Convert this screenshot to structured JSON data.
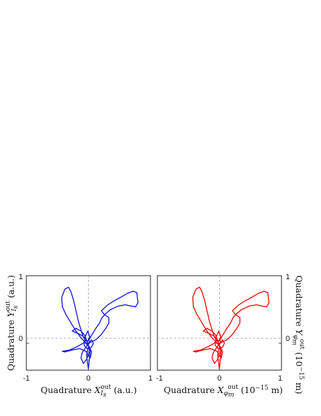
{
  "chart_data": [
    {
      "type": "line",
      "panel": "left",
      "xlabel": "Quadrature X_{I_s}^{out} (a.u.)",
      "ylabel": "Quadrature Y_{I_s}^{out} (a.u.)",
      "xlim": [
        -1,
        1
      ],
      "ylim": [
        -0.4,
        1
      ],
      "xticks": [
        "-1",
        "0",
        "1"
      ],
      "yticks": [
        "0",
        "1"
      ],
      "reference_lines": [
        {
          "axis": "x",
          "value": 0
        },
        {
          "axis": "y",
          "value": 0
        }
      ],
      "grid": false,
      "series": [
        {
          "color": "#1a1ae6",
          "points": [
            [
              0,
              0.0
            ],
            [
              0.05,
              0.02
            ],
            [
              0.12,
              0.05
            ],
            [
              0.2,
              0.12
            ],
            [
              0.28,
              0.22
            ],
            [
              0.33,
              0.3
            ],
            [
              0.33,
              0.38
            ],
            [
              0.26,
              0.42
            ],
            [
              0.21,
              0.48
            ],
            [
              0.3,
              0.56
            ],
            [
              0.4,
              0.62
            ],
            [
              0.52,
              0.68
            ],
            [
              0.63,
              0.74
            ],
            [
              0.72,
              0.77
            ],
            [
              0.78,
              0.75
            ],
            [
              0.8,
              0.6
            ],
            [
              0.76,
              0.54
            ],
            [
              0.68,
              0.55
            ],
            [
              0.6,
              0.57
            ],
            [
              0.48,
              0.55
            ],
            [
              0.36,
              0.5
            ],
            [
              0.28,
              0.44
            ],
            [
              0.22,
              0.38
            ],
            [
              0.18,
              0.3
            ],
            [
              0.12,
              0.22
            ],
            [
              0.08,
              0.16
            ],
            [
              0.04,
              0.1
            ],
            [
              0.01,
              0.05
            ],
            [
              -0.02,
              0.03
            ],
            [
              -0.06,
              0.05
            ],
            [
              -0.1,
              0.14
            ],
            [
              -0.16,
              0.32
            ],
            [
              -0.2,
              0.48
            ],
            [
              -0.24,
              0.64
            ],
            [
              -0.28,
              0.76
            ],
            [
              -0.32,
              0.83
            ],
            [
              -0.38,
              0.8
            ],
            [
              -0.43,
              0.68
            ],
            [
              -0.42,
              0.54
            ],
            [
              -0.36,
              0.42
            ],
            [
              -0.28,
              0.3
            ],
            [
              -0.2,
              0.18
            ],
            [
              -0.12,
              0.08
            ],
            [
              -0.06,
              0.02
            ],
            [
              -0.02,
              -0.02
            ],
            [
              0.02,
              -0.06
            ],
            [
              0.05,
              -0.13
            ],
            [
              0.03,
              -0.22
            ],
            [
              -0.04,
              -0.12
            ],
            [
              -0.14,
              -0.08
            ],
            [
              -0.26,
              -0.1
            ],
            [
              -0.38,
              -0.13
            ],
            [
              -0.42,
              -0.12
            ],
            [
              -0.3,
              -0.1
            ],
            [
              -0.18,
              -0.05
            ],
            [
              -0.08,
              0.0
            ],
            [
              -0.04,
              0.06
            ],
            [
              -0.08,
              0.1
            ],
            [
              -0.16,
              0.14
            ],
            [
              -0.26,
              0.18
            ],
            [
              -0.2,
              0.22
            ],
            [
              -0.12,
              0.18
            ],
            [
              -0.06,
              0.12
            ],
            [
              -0.02,
              0.02
            ],
            [
              0.02,
              -0.12
            ],
            [
              -0.03,
              -0.24
            ],
            [
              -0.08,
              -0.3
            ],
            [
              -0.12,
              -0.22
            ],
            [
              -0.1,
              -0.14
            ],
            [
              -0.04,
              -0.06
            ],
            [
              0.0,
              0.0
            ],
            [
              0.05,
              0.05
            ],
            [
              0.08,
              0.0
            ],
            [
              0.05,
              -0.06
            ],
            [
              -0.02,
              -0.08
            ],
            [
              -0.07,
              -0.03
            ],
            [
              -0.05,
              0.03
            ],
            [
              0.0,
              0.04
            ],
            [
              0.03,
              0.02
            ],
            [
              0.0,
              -0.02
            ],
            [
              -0.03,
              0.0
            ],
            [
              0.0,
              0.05
            ],
            [
              0.02,
              0.1
            ],
            [
              -0.01,
              0.18
            ],
            [
              -0.05,
              0.1
            ],
            [
              -0.02,
              0.01
            ],
            [
              0.03,
              -0.1
            ],
            [
              0.0,
              -0.38
            ],
            [
              -0.03,
              -0.18
            ],
            [
              0.0,
              -0.05
            ],
            [
              0.0,
              0.0
            ]
          ]
        }
      ]
    },
    {
      "type": "line",
      "panel": "right",
      "xlabel": "Quadrature X_{φ_m}^{out} (10^{-15} m)",
      "ylabel": "Quadrature Y_{φ_m}^{out} (10^{-15} m)",
      "xlim": [
        -1,
        1
      ],
      "ylim": [
        -0.4,
        1
      ],
      "xticks": [
        "-1",
        "0",
        "1"
      ],
      "yticks": [
        "0",
        "1"
      ],
      "reference_lines": [
        {
          "axis": "x",
          "value": 0
        },
        {
          "axis": "y",
          "value": 0
        }
      ],
      "grid": false,
      "series": [
        {
          "color": "#ee1111",
          "points": [
            [
              0,
              0.0
            ],
            [
              0.05,
              0.02
            ],
            [
              0.12,
              0.05
            ],
            [
              0.2,
              0.12
            ],
            [
              0.28,
              0.22
            ],
            [
              0.33,
              0.3
            ],
            [
              0.33,
              0.38
            ],
            [
              0.26,
              0.42
            ],
            [
              0.21,
              0.48
            ],
            [
              0.3,
              0.56
            ],
            [
              0.4,
              0.62
            ],
            [
              0.52,
              0.68
            ],
            [
              0.63,
              0.74
            ],
            [
              0.72,
              0.77
            ],
            [
              0.78,
              0.75
            ],
            [
              0.8,
              0.6
            ],
            [
              0.76,
              0.54
            ],
            [
              0.68,
              0.55
            ],
            [
              0.6,
              0.57
            ],
            [
              0.48,
              0.55
            ],
            [
              0.36,
              0.5
            ],
            [
              0.28,
              0.44
            ],
            [
              0.22,
              0.38
            ],
            [
              0.18,
              0.3
            ],
            [
              0.12,
              0.22
            ],
            [
              0.08,
              0.16
            ],
            [
              0.04,
              0.1
            ],
            [
              0.01,
              0.05
            ],
            [
              -0.02,
              0.03
            ],
            [
              -0.06,
              0.05
            ],
            [
              -0.1,
              0.14
            ],
            [
              -0.16,
              0.32
            ],
            [
              -0.2,
              0.48
            ],
            [
              -0.24,
              0.64
            ],
            [
              -0.28,
              0.76
            ],
            [
              -0.32,
              0.83
            ],
            [
              -0.38,
              0.8
            ],
            [
              -0.43,
              0.68
            ],
            [
              -0.42,
              0.54
            ],
            [
              -0.36,
              0.42
            ],
            [
              -0.28,
              0.3
            ],
            [
              -0.2,
              0.18
            ],
            [
              -0.12,
              0.08
            ],
            [
              -0.06,
              0.02
            ],
            [
              -0.02,
              -0.02
            ],
            [
              0.02,
              -0.06
            ],
            [
              0.05,
              -0.13
            ],
            [
              0.03,
              -0.22
            ],
            [
              -0.04,
              -0.12
            ],
            [
              -0.14,
              -0.08
            ],
            [
              -0.26,
              -0.1
            ],
            [
              -0.38,
              -0.13
            ],
            [
              -0.42,
              -0.12
            ],
            [
              -0.3,
              -0.1
            ],
            [
              -0.18,
              -0.05
            ],
            [
              -0.08,
              0.0
            ],
            [
              -0.04,
              0.06
            ],
            [
              -0.08,
              0.1
            ],
            [
              -0.16,
              0.14
            ],
            [
              -0.26,
              0.18
            ],
            [
              -0.2,
              0.22
            ],
            [
              -0.12,
              0.18
            ],
            [
              -0.06,
              0.12
            ],
            [
              -0.02,
              0.02
            ],
            [
              0.02,
              -0.12
            ],
            [
              -0.03,
              -0.24
            ],
            [
              -0.08,
              -0.3
            ],
            [
              -0.12,
              -0.22
            ],
            [
              -0.1,
              -0.14
            ],
            [
              -0.04,
              -0.06
            ],
            [
              0.0,
              0.0
            ],
            [
              0.05,
              0.05
            ],
            [
              0.08,
              0.0
            ],
            [
              0.05,
              -0.06
            ],
            [
              -0.02,
              -0.08
            ],
            [
              -0.07,
              -0.03
            ],
            [
              -0.05,
              0.03
            ],
            [
              0.0,
              0.04
            ],
            [
              0.03,
              0.02
            ],
            [
              0.0,
              -0.02
            ],
            [
              -0.03,
              0.0
            ],
            [
              0.0,
              0.05
            ],
            [
              0.02,
              0.1
            ],
            [
              -0.01,
              0.18
            ],
            [
              -0.05,
              0.1
            ],
            [
              -0.02,
              0.01
            ],
            [
              0.03,
              -0.1
            ],
            [
              0.0,
              -0.38
            ],
            [
              -0.03,
              -0.18
            ],
            [
              0.0,
              -0.05
            ],
            [
              0.0,
              0.0
            ]
          ]
        }
      ]
    }
  ]
}
